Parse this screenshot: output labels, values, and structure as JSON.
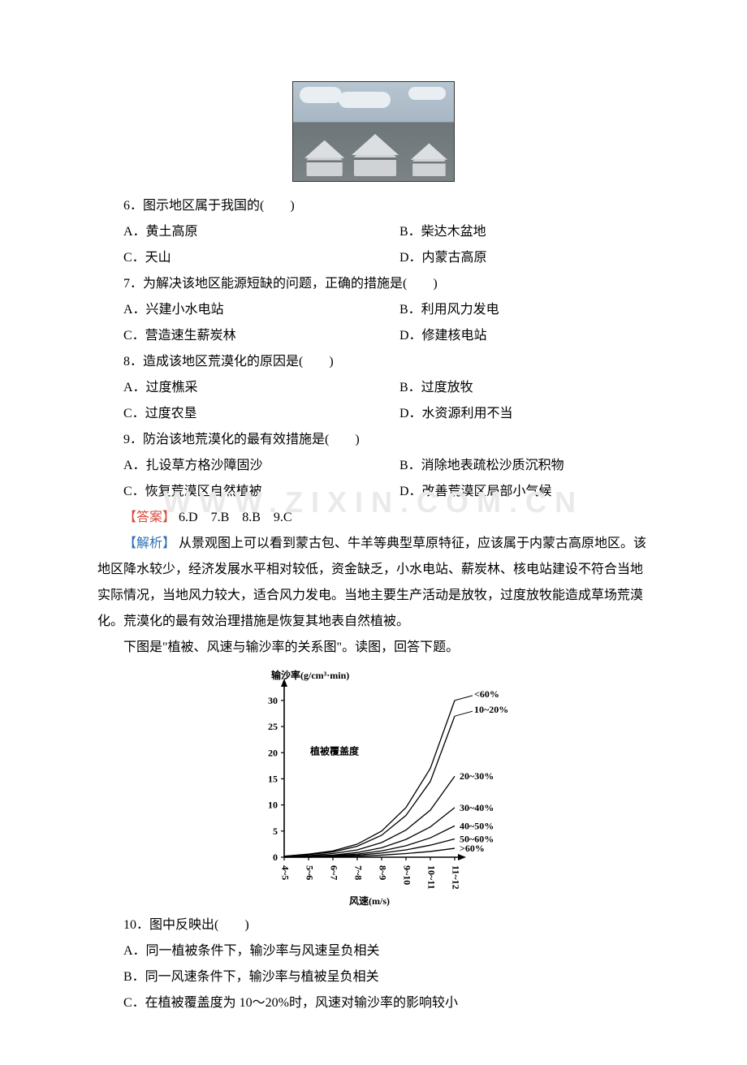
{
  "watermark": "WWW.ZIXIN.COM.CN",
  "photo": {
    "name": "grassland-yurt-image"
  },
  "questions": [
    {
      "num": "6",
      "stem": "图示地区属于我国的(　　)",
      "options": [
        {
          "letter": "A",
          "text": "黄土高原"
        },
        {
          "letter": "B",
          "text": "柴达木盆地"
        },
        {
          "letter": "C",
          "text": "天山"
        },
        {
          "letter": "D",
          "text": "内蒙古高原"
        }
      ]
    },
    {
      "num": "7",
      "stem": "为解决该地区能源短缺的问题，正确的措施是(　　)",
      "options": [
        {
          "letter": "A",
          "text": "兴建小水电站"
        },
        {
          "letter": "B",
          "text": "利用风力发电"
        },
        {
          "letter": "C",
          "text": "营造速生薪炭林"
        },
        {
          "letter": "D",
          "text": "修建核电站"
        }
      ]
    },
    {
      "num": "8",
      "stem": "造成该地区荒漠化的原因是(　　)",
      "options": [
        {
          "letter": "A",
          "text": "过度樵采"
        },
        {
          "letter": "B",
          "text": "过度放牧"
        },
        {
          "letter": "C",
          "text": "过度农垦"
        },
        {
          "letter": "D",
          "text": "水资源利用不当"
        }
      ]
    },
    {
      "num": "9",
      "stem": "防治该地荒漠化的最有效措施是(　　)",
      "options": [
        {
          "letter": "A",
          "text": "扎设草方格沙障固沙"
        },
        {
          "letter": "B",
          "text": "消除地表疏松沙质沉积物"
        },
        {
          "letter": "C",
          "text": "恢复荒漠区自然植被"
        },
        {
          "letter": "D",
          "text": "改善荒漠区局部小气候"
        }
      ]
    }
  ],
  "answer": {
    "label": "【答案】",
    "text": "6.D　7.B　8.B　9.C"
  },
  "explain": {
    "label": "【解析】",
    "text": "从景观图上可以看到蒙古包、牛羊等典型草原特征，应该属于内蒙古高原地区。该地区降水较少，经济发展水平相对较低，资金缺乏，小水电站、薪炭林、核电站建设不符合当地实际情况，当地风力较大，适合风力发电。当地主要生产活动是放牧，过度放牧能造成草场荒漠化。荒漠化的最有效治理措施是恢复其地表自然植被。"
  },
  "chart_intro": "下图是\"植被、风速与输沙率的关系图\"。读图，回答下题。",
  "chart": {
    "type": "line",
    "title_y": "输沙率(g/cm³·min)",
    "title_x": "风速(m/s)",
    "inner_label": "植被覆盖度",
    "x_categories": [
      "4~5",
      "5~6",
      "6~7",
      "7~8",
      "8~9",
      "9~10",
      "10~11",
      "11~12"
    ],
    "y_ticks": [
      0,
      5,
      10,
      15,
      20,
      25,
      30
    ],
    "xlim": [
      0,
      7
    ],
    "ylim": [
      0,
      32
    ],
    "series": [
      {
        "name": "<60%",
        "values": [
          0.2,
          0.6,
          1.2,
          2.5,
          5.0,
          9.5,
          17.0,
          30.0
        ]
      },
      {
        "name": "10~20%",
        "values": [
          0.2,
          0.5,
          1.0,
          2.1,
          4.2,
          8.0,
          14.5,
          27.0
        ]
      },
      {
        "name": "20~30%",
        "values": [
          0.1,
          0.3,
          0.7,
          1.4,
          2.8,
          5.2,
          9.0,
          15.5
        ]
      },
      {
        "name": "30~40%",
        "values": [
          0.1,
          0.2,
          0.4,
          0.9,
          1.8,
          3.4,
          5.8,
          9.5
        ]
      },
      {
        "name": "40~50%",
        "values": [
          0.0,
          0.1,
          0.3,
          0.6,
          1.2,
          2.2,
          3.7,
          6.0
        ]
      },
      {
        "name": "50~60%",
        "values": [
          0.0,
          0.1,
          0.2,
          0.4,
          0.8,
          1.4,
          2.3,
          3.5
        ]
      },
      {
        "name": ">60%",
        "values": [
          0.0,
          0.0,
          0.1,
          0.2,
          0.4,
          0.7,
          1.1,
          1.7
        ]
      }
    ],
    "style": {
      "axis_color": "#000000",
      "line_color": "#000000",
      "line_width": 1.3,
      "font_size": 12,
      "font_weight": 700,
      "background": "#ffffff",
      "label_line_length": 22,
      "label_positions_right": {
        "<60%": 30,
        "10~20%": 27,
        "20~30%": 15.5,
        "30~40%": 9.5,
        "40~50%": 6.0,
        "50~60%": 3.5,
        ">60%": 1.7
      }
    }
  },
  "q10": {
    "num": "10",
    "stem": "图中反映出(　　)",
    "options": [
      {
        "letter": "A",
        "text": "同一植被条件下，输沙率与风速呈负相关"
      },
      {
        "letter": "B",
        "text": "同一风速条件下，输沙率与植被呈负相关"
      },
      {
        "letter": "C",
        "text": "在植被覆盖度为 10～20%时，风速对输沙率的影响较小"
      }
    ]
  }
}
